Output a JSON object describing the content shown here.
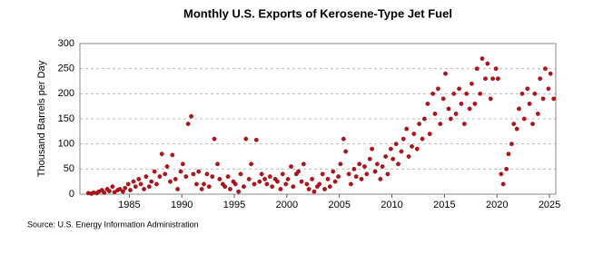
{
  "chart_data": {
    "type": "scatter",
    "title": "Monthly U.S. Exports of Kerosene-Type Jet Fuel",
    "y_label": "Thousand Barrels per Day",
    "source": "Source: U.S. Energy Information Administration",
    "xlim": [
      1980.3,
      2025.6
    ],
    "xticks": [
      1985,
      1990,
      1995,
      2000,
      2005,
      2010,
      2015,
      2020,
      2025
    ],
    "ylim": [
      0,
      300
    ],
    "yticks": [
      0,
      50,
      100,
      150,
      200,
      250,
      300
    ],
    "grid": true,
    "series": [
      {
        "color": "#b5121b",
        "x": [
          1981.1,
          1981.4,
          1981.6,
          1981.9,
          1982.1,
          1982.4,
          1982.6,
          1982.9,
          1983.1,
          1983.4,
          1983.6,
          1983.9,
          1984.1,
          1984.4,
          1984.6,
          1984.9,
          1985.1,
          1985.4,
          1985.6,
          1985.9,
          1986.1,
          1986.4,
          1986.6,
          1986.9,
          1987.1,
          1987.4,
          1987.6,
          1987.9,
          1988.1,
          1988.4,
          1988.6,
          1988.9,
          1989.1,
          1989.4,
          1989.6,
          1989.9,
          1990.1,
          1990.4,
          1990.6,
          1990.9,
          1991.1,
          1991.4,
          1991.6,
          1991.9,
          1992.1,
          1992.4,
          1992.6,
          1992.9,
          1993.1,
          1993.4,
          1993.6,
          1993.9,
          1994.1,
          1994.4,
          1994.6,
          1994.9,
          1995.1,
          1995.4,
          1995.6,
          1995.9,
          1996.1,
          1996.4,
          1996.6,
          1996.9,
          1997.1,
          1997.4,
          1997.6,
          1997.9,
          1998.1,
          1998.4,
          1998.6,
          1998.9,
          1999.1,
          1999.4,
          1999.6,
          1999.9,
          2000.1,
          2000.4,
          2000.6,
          2000.9,
          2001.1,
          2001.4,
          2001.6,
          2001.9,
          2002.1,
          2002.4,
          2002.6,
          2002.9,
          2003.1,
          2003.4,
          2003.6,
          2003.9,
          2004.1,
          2004.4,
          2004.6,
          2004.9,
          2005.1,
          2005.4,
          2005.6,
          2005.9,
          2006.1,
          2006.4,
          2006.6,
          2006.9,
          2007.1,
          2007.4,
          2007.6,
          2007.9,
          2008.1,
          2008.4,
          2008.6,
          2008.9,
          2009.1,
          2009.4,
          2009.6,
          2009.9,
          2010.1,
          2010.4,
          2010.6,
          2010.9,
          2011.1,
          2011.4,
          2011.6,
          2011.9,
          2012.1,
          2012.4,
          2012.6,
          2012.9,
          2013.1,
          2013.4,
          2013.6,
          2013.9,
          2014.1,
          2014.4,
          2014.6,
          2014.9,
          2015.1,
          2015.4,
          2015.6,
          2015.9,
          2016.1,
          2016.4,
          2016.6,
          2016.9,
          2017.1,
          2017.4,
          2017.6,
          2017.9,
          2018.1,
          2018.4,
          2018.6,
          2018.9,
          2019.1,
          2019.4,
          2019.6,
          2019.9,
          2020.1,
          2020.4,
          2020.6,
          2020.9,
          2021.1,
          2021.4,
          2021.6,
          2021.9,
          2022.1,
          2022.4,
          2022.6,
          2022.9,
          2023.1,
          2023.4,
          2023.6,
          2023.9,
          2024.1,
          2024.4,
          2024.6,
          2024.9,
          2025.1,
          2025.4
        ],
        "values": [
          2,
          1,
          3,
          2,
          5,
          8,
          3,
          10,
          6,
          15,
          4,
          8,
          10,
          5,
          12,
          20,
          8,
          25,
          15,
          30,
          20,
          10,
          35,
          15,
          25,
          45,
          20,
          35,
          80,
          40,
          55,
          25,
          78,
          30,
          10,
          45,
          60,
          35,
          140,
          155,
          40,
          20,
          45,
          10,
          20,
          40,
          15,
          35,
          110,
          60,
          30,
          20,
          15,
          35,
          10,
          25,
          20,
          5,
          40,
          15,
          110,
          30,
          60,
          20,
          108,
          25,
          40,
          30,
          20,
          35,
          15,
          30,
          25,
          10,
          40,
          20,
          30,
          55,
          15,
          40,
          45,
          25,
          60,
          20,
          10,
          30,
          5,
          15,
          20,
          40,
          10,
          30,
          15,
          45,
          25,
          35,
          60,
          110,
          85,
          40,
          20,
          50,
          35,
          60,
          30,
          55,
          40,
          70,
          90,
          45,
          60,
          30,
          55,
          75,
          40,
          90,
          70,
          100,
          60,
          85,
          110,
          130,
          75,
          95,
          120,
          90,
          140,
          110,
          150,
          180,
          120,
          200,
          160,
          210,
          140,
          190,
          240,
          170,
          150,
          200,
          160,
          210,
          180,
          140,
          200,
          170,
          220,
          180,
          250,
          200,
          270,
          230,
          260,
          190,
          230,
          250,
          230,
          40,
          20,
          50,
          80,
          100,
          140,
          130,
          170,
          200,
          150,
          210,
          180,
          140,
          200,
          160,
          230,
          190,
          250,
          210,
          240,
          190
        ]
      }
    ]
  }
}
